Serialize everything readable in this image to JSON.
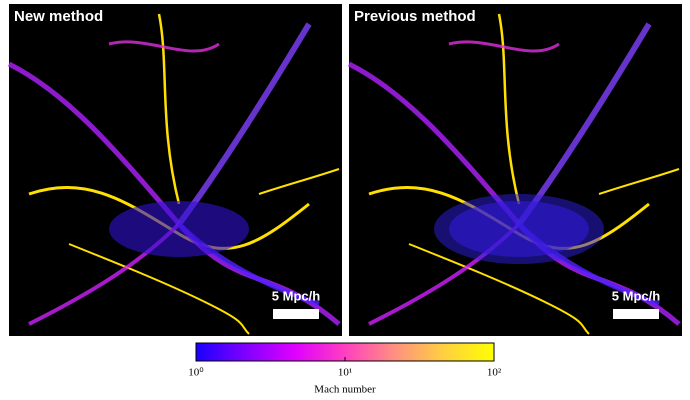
{
  "panels": [
    {
      "title": "New method",
      "scale_bar": "5 Mpc/h"
    },
    {
      "title": "Previous method",
      "scale_bar": "5 Mpc/h"
    }
  ],
  "colorbar": {
    "label": "Mach number",
    "log_scale": true,
    "lim": [
      1,
      100
    ],
    "ticks": [
      {
        "value": 1,
        "label": "10⁰"
      },
      {
        "value": 10,
        "label": "10¹"
      },
      {
        "value": 100,
        "label": "10²"
      }
    ],
    "colors": [
      "#1a00ff",
      "#8000ff",
      "#e000ff",
      "#ff40c0",
      "#ff9080",
      "#ffd040",
      "#ffff00"
    ]
  }
}
